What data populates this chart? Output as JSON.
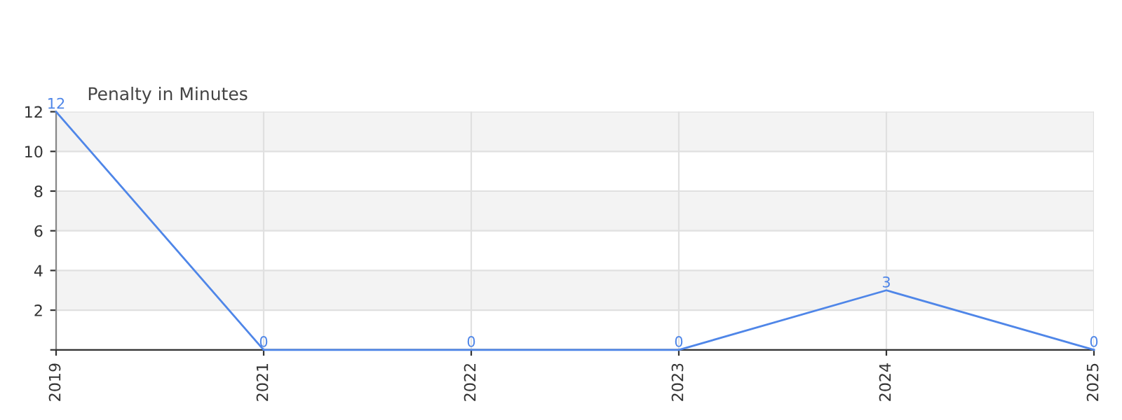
{
  "chart_data": {
    "type": "line",
    "title": "Penalty in Minutes",
    "categories": [
      "2019",
      "2021",
      "2022",
      "2023",
      "2024",
      "2025"
    ],
    "series": [
      {
        "color": "#4f86e8",
        "values": [
          12,
          0,
          0,
          0,
          3,
          0
        ]
      }
    ],
    "ylim": [
      0,
      12
    ],
    "yticks": [
      {
        "value": 0,
        "label": null
      },
      2,
      4,
      6,
      8,
      10,
      12
    ],
    "bands": [
      {
        "axis": "y",
        "from": 2,
        "to": 4,
        "color": "#f3f3f3"
      },
      {
        "axis": "y",
        "from": 6,
        "to": 8,
        "color": "#f3f3f3"
      },
      {
        "axis": "y",
        "from": 10,
        "to": 12,
        "color": "#f3f3f3"
      }
    ],
    "grid": true,
    "data_labels": true,
    "marker": "none",
    "line_style": "solid"
  }
}
